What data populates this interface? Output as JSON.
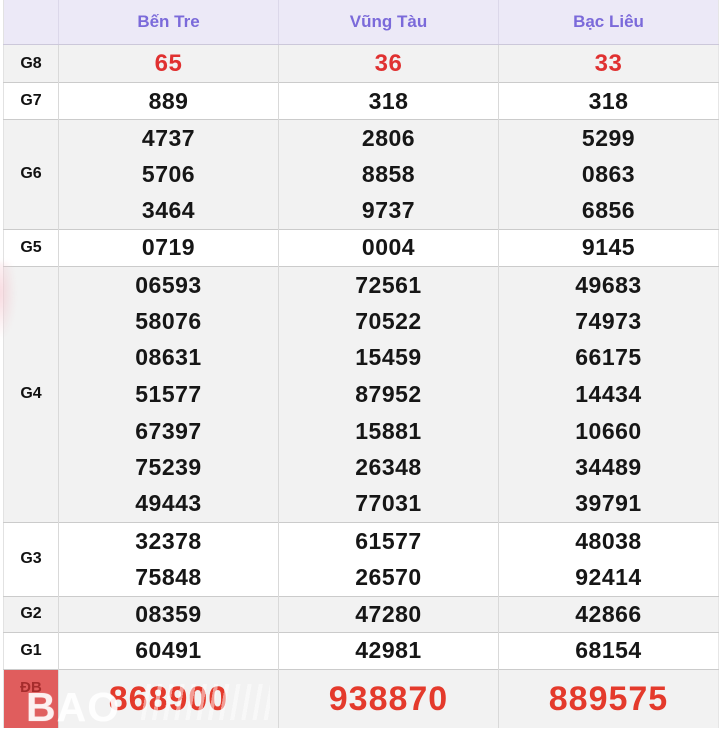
{
  "colors": {
    "accent_purple": "#7b6ada",
    "header_bg": "#ece9f7",
    "row_gray": "#f2f2f2",
    "red": "#e03131",
    "db_red": "#e43a2c",
    "db_label_bg": "#e05d5d"
  },
  "table": {
    "columns": [
      "Bến Tre",
      "Vũng Tàu",
      "Bạc Liêu"
    ],
    "groups": [
      {
        "label": "G8",
        "highlight": true,
        "rows": [
          [
            "65",
            "36",
            "33"
          ]
        ]
      },
      {
        "label": "G7",
        "rows": [
          [
            "889",
            "318",
            "318"
          ]
        ]
      },
      {
        "label": "G6",
        "rows": [
          [
            "4737",
            "2806",
            "5299"
          ],
          [
            "5706",
            "8858",
            "0863"
          ],
          [
            "3464",
            "9737",
            "6856"
          ]
        ]
      },
      {
        "label": "G5",
        "rows": [
          [
            "0719",
            "0004",
            "9145"
          ]
        ]
      },
      {
        "label": "G4",
        "rows": [
          [
            "06593",
            "72561",
            "49683"
          ],
          [
            "58076",
            "70522",
            "74973"
          ],
          [
            "08631",
            "15459",
            "66175"
          ],
          [
            "51577",
            "87952",
            "14434"
          ],
          [
            "67397",
            "15881",
            "10660"
          ],
          [
            "75239",
            "26348",
            "34489"
          ],
          [
            "49443",
            "77031",
            "39791"
          ]
        ]
      },
      {
        "label": "G3",
        "rows": [
          [
            "32378",
            "61577",
            "48038"
          ],
          [
            "75848",
            "26570",
            "92414"
          ]
        ]
      },
      {
        "label": "G2",
        "rows": [
          [
            "08359",
            "47280",
            "42866"
          ]
        ]
      },
      {
        "label": "G1",
        "rows": [
          [
            "60491",
            "42981",
            "68154"
          ]
        ]
      },
      {
        "label": "ĐB",
        "special": true,
        "rows": [
          [
            "868900",
            "938870",
            "889575"
          ]
        ]
      }
    ]
  },
  "watermark": {
    "text": "BAO"
  }
}
